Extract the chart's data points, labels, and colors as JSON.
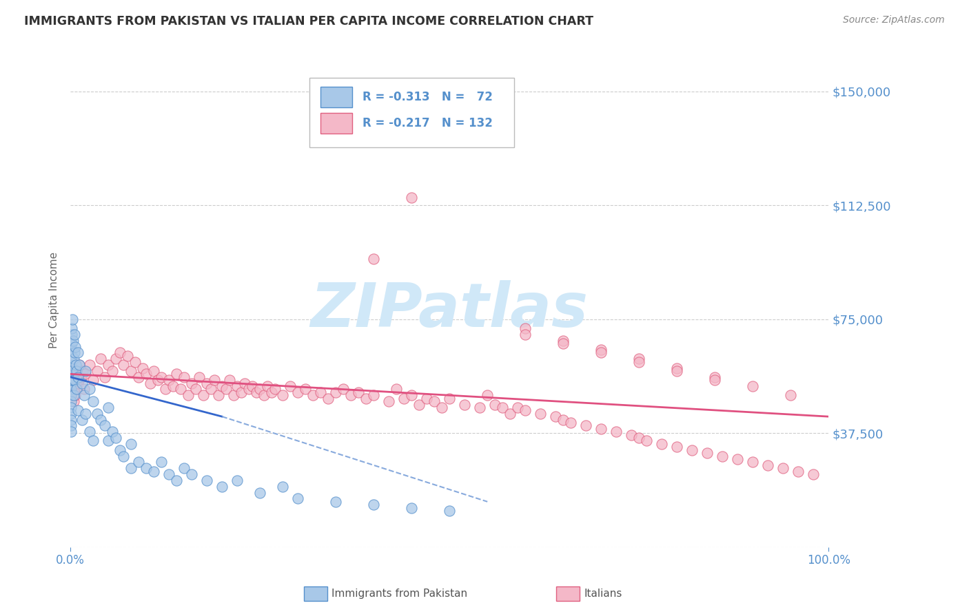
{
  "title": "IMMIGRANTS FROM PAKISTAN VS ITALIAN PER CAPITA INCOME CORRELATION CHART",
  "source": "Source: ZipAtlas.com",
  "ylabel": "Per Capita Income",
  "series": [
    {
      "name": "Immigrants from Pakistan",
      "color": "#a8c8e8",
      "edge_color": "#5590cc",
      "R": -0.313,
      "N": 72,
      "x": [
        0.05,
        0.05,
        0.05,
        0.05,
        0.05,
        0.05,
        0.05,
        0.05,
        0.05,
        0.05,
        0.1,
        0.1,
        0.1,
        0.15,
        0.15,
        0.2,
        0.2,
        0.2,
        0.25,
        0.3,
        0.3,
        0.4,
        0.4,
        0.5,
        0.5,
        0.5,
        0.6,
        0.7,
        0.8,
        0.8,
        1.0,
        1.0,
        1.0,
        1.2,
        1.5,
        1.5,
        1.8,
        2.0,
        2.0,
        2.5,
        2.5,
        3.0,
        3.0,
        3.5,
        4.0,
        4.5,
        5.0,
        5.0,
        5.5,
        6.0,
        6.5,
        7.0,
        8.0,
        8.0,
        9.0,
        10.0,
        11.0,
        12.0,
        13.0,
        14.0,
        15.0,
        16.0,
        18.0,
        20.0,
        22.0,
        25.0,
        28.0,
        30.0,
        35.0,
        40.0,
        45.0,
        50.0
      ],
      "y": [
        57000,
        54000,
        52000,
        50000,
        48000,
        46000,
        44000,
        42000,
        40000,
        38000,
        65000,
        60000,
        55000,
        70000,
        63000,
        72000,
        67000,
        58000,
        75000,
        68000,
        55000,
        62000,
        50000,
        70000,
        64000,
        55000,
        66000,
        60000,
        58000,
        52000,
        64000,
        56000,
        45000,
        60000,
        54000,
        42000,
        50000,
        58000,
        44000,
        52000,
        38000,
        48000,
        35000,
        44000,
        42000,
        40000,
        46000,
        35000,
        38000,
        36000,
        32000,
        30000,
        34000,
        26000,
        28000,
        26000,
        25000,
        28000,
        24000,
        22000,
        26000,
        24000,
        22000,
        20000,
        22000,
        18000,
        20000,
        16000,
        15000,
        14000,
        13000,
        12000
      ]
    },
    {
      "name": "Italians",
      "color": "#f4b8c8",
      "edge_color": "#e06080",
      "R": -0.217,
      "N": 132,
      "x": [
        0.1,
        0.2,
        0.3,
        0.4,
        0.5,
        0.6,
        0.7,
        0.8,
        0.9,
        1.0,
        1.2,
        1.4,
        1.6,
        1.8,
        2.0,
        2.5,
        3.0,
        3.5,
        4.0,
        4.5,
        5.0,
        5.5,
        6.0,
        6.5,
        7.0,
        7.5,
        8.0,
        8.5,
        9.0,
        9.5,
        10.0,
        10.5,
        11.0,
        11.5,
        12.0,
        12.5,
        13.0,
        13.5,
        14.0,
        14.5,
        15.0,
        15.5,
        16.0,
        16.5,
        17.0,
        17.5,
        18.0,
        18.5,
        19.0,
        19.5,
        20.0,
        20.5,
        21.0,
        21.5,
        22.0,
        22.5,
        23.0,
        23.5,
        24.0,
        24.5,
        25.0,
        25.5,
        26.0,
        26.5,
        27.0,
        28.0,
        29.0,
        30.0,
        31.0,
        32.0,
        33.0,
        34.0,
        35.0,
        36.0,
        37.0,
        38.0,
        39.0,
        40.0,
        42.0,
        43.0,
        44.0,
        45.0,
        46.0,
        47.0,
        48.0,
        49.0,
        50.0,
        52.0,
        54.0,
        55.0,
        56.0,
        57.0,
        58.0,
        59.0,
        60.0,
        62.0,
        64.0,
        65.0,
        66.0,
        68.0,
        70.0,
        72.0,
        74.0,
        75.0,
        76.0,
        78.0,
        80.0,
        82.0,
        84.0,
        86.0,
        88.0,
        90.0,
        92.0,
        94.0,
        96.0,
        98.0,
        40.0,
        45.0,
        60.0,
        65.0,
        70.0,
        75.0,
        80.0,
        85.0,
        90.0,
        95.0,
        60.0,
        65.0,
        70.0,
        75.0,
        80.0,
        85.0
      ],
      "y": [
        52000,
        58000,
        55000,
        48000,
        56000,
        50000,
        54000,
        52000,
        57000,
        54000,
        60000,
        56000,
        58000,
        52000,
        57000,
        60000,
        55000,
        58000,
        62000,
        56000,
        60000,
        58000,
        62000,
        64000,
        60000,
        63000,
        58000,
        61000,
        56000,
        59000,
        57000,
        54000,
        58000,
        55000,
        56000,
        52000,
        55000,
        53000,
        57000,
        52000,
        56000,
        50000,
        54000,
        52000,
        56000,
        50000,
        54000,
        52000,
        55000,
        50000,
        53000,
        52000,
        55000,
        50000,
        53000,
        51000,
        54000,
        52000,
        53000,
        51000,
        52000,
        50000,
        53000,
        51000,
        52000,
        50000,
        53000,
        51000,
        52000,
        50000,
        51000,
        49000,
        51000,
        52000,
        50000,
        51000,
        49000,
        50000,
        48000,
        52000,
        49000,
        50000,
        47000,
        49000,
        48000,
        46000,
        49000,
        47000,
        46000,
        50000,
        47000,
        46000,
        44000,
        46000,
        45000,
        44000,
        43000,
        42000,
        41000,
        40000,
        39000,
        38000,
        37000,
        36000,
        35000,
        34000,
        33000,
        32000,
        31000,
        30000,
        29000,
        28000,
        27000,
        26000,
        25000,
        24000,
        95000,
        115000,
        72000,
        68000,
        65000,
        62000,
        59000,
        56000,
        53000,
        50000,
        70000,
        67000,
        64000,
        61000,
        58000,
        55000
      ]
    }
  ],
  "yticks": [
    0,
    37500,
    75000,
    112500,
    150000
  ],
  "ytick_labels": [
    "",
    "$37,500",
    "$75,000",
    "$112,500",
    "$150,000"
  ],
  "ylim": [
    0,
    162500
  ],
  "xlim": [
    0,
    100
  ],
  "grid_color": "#cccccc",
  "bg_color": "#ffffff",
  "title_color": "#333333",
  "axis_label_color": "#5590cc",
  "watermark": "ZIPatlas",
  "watermark_color": "#d0e8f8",
  "trend_blue_x0": 0,
  "trend_blue_y0": 56000,
  "trend_blue_x1": 20,
  "trend_blue_y1": 43000,
  "trend_blue_dash_x1": 55,
  "trend_blue_dash_y1": 15000,
  "trend_pink_x0": 0,
  "trend_pink_y0": 57000,
  "trend_pink_x1": 100,
  "trend_pink_y1": 43000
}
